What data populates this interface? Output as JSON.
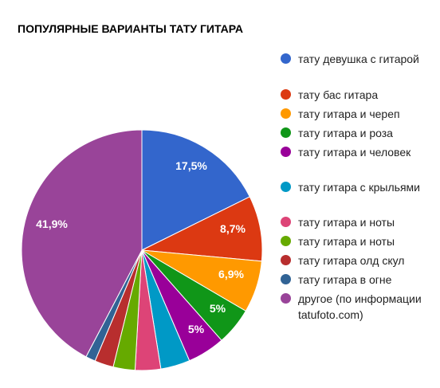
{
  "chart_data": {
    "type": "pie",
    "title": "ПОПУЛЯРНЫЕ ВАРИАНТЫ ТАТУ ГИТАРА",
    "legend_position": "right",
    "slices": [
      {
        "name": "тату девушка с гитарой",
        "value": 17.5,
        "label": "17,5%",
        "color": "#3366cc"
      },
      {
        "name": "тату бас гитара",
        "value": 8.7,
        "label": "8,7%",
        "color": "#dc3912"
      },
      {
        "name": "тату гитара и череп",
        "value": 6.9,
        "label": "6,9%",
        "color": "#ff9900"
      },
      {
        "name": "тату гитара и роза",
        "value": 5.0,
        "label": "5%",
        "color": "#109618"
      },
      {
        "name": "тату гитара и человек",
        "value": 5.0,
        "label": "5%",
        "color": "#990099"
      },
      {
        "name": "тату гитара с крыльями",
        "value": 3.9,
        "label": "",
        "color": "#0099c6"
      },
      {
        "name": "тату гитара и ноты",
        "value": 3.4,
        "label": "",
        "color": "#dd4477"
      },
      {
        "name": "тату гитара и ноты",
        "value": 2.9,
        "label": "",
        "color": "#66aa00"
      },
      {
        "name": "тату гитара олд скул",
        "value": 2.5,
        "label": "",
        "color": "#b82e2e"
      },
      {
        "name": "тату гитара в огне",
        "value": 1.3,
        "label": "",
        "color": "#316395"
      },
      {
        "name": "другое (по информации tatufoto.com)",
        "value": 41.9,
        "label": "41,9%",
        "color": "#994499"
      }
    ]
  }
}
